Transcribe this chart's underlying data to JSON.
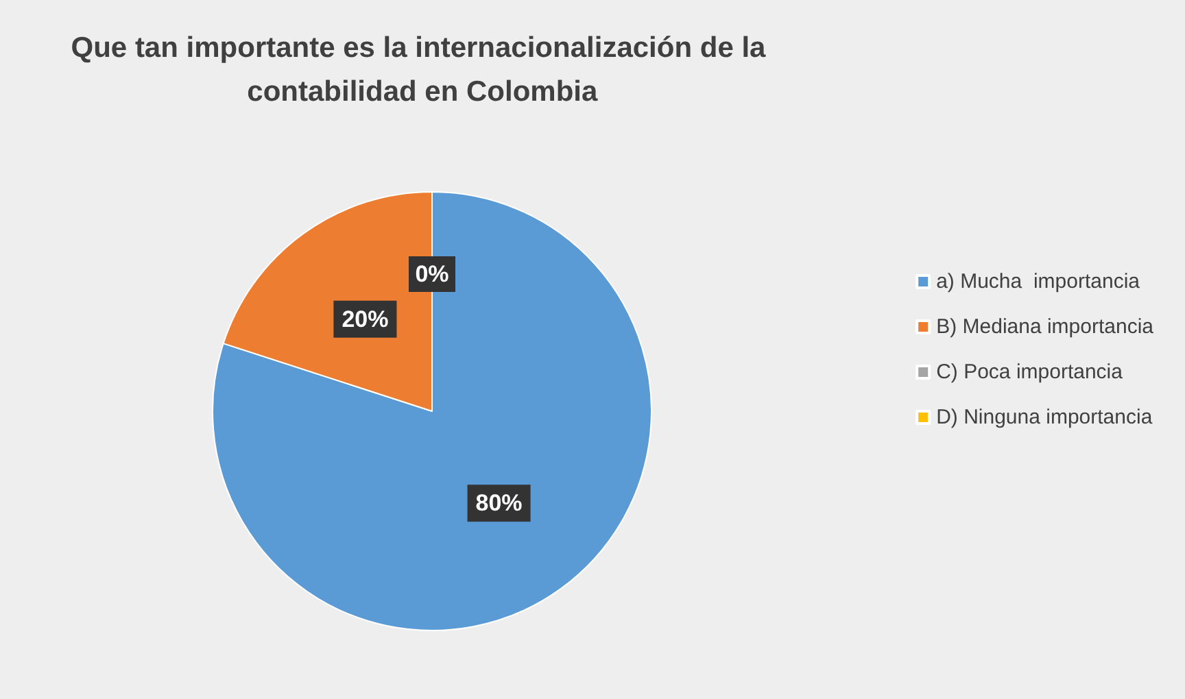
{
  "chart_data": {
    "type": "pie",
    "title": "Que tan importante es la internacionalización de la contabilidad en Colombia",
    "categories": [
      "a) Mucha  importancia",
      "B) Mediana importancia",
      "C) Poca importancia",
      "D) Ninguna importancia"
    ],
    "values": [
      80,
      20,
      0,
      0
    ],
    "colors": [
      "#5b9bd5",
      "#ed7d31",
      "#a5a5a5",
      "#ffc000"
    ],
    "value_labels": [
      "80%",
      "20%",
      "0%",
      null
    ],
    "legend": "right"
  }
}
